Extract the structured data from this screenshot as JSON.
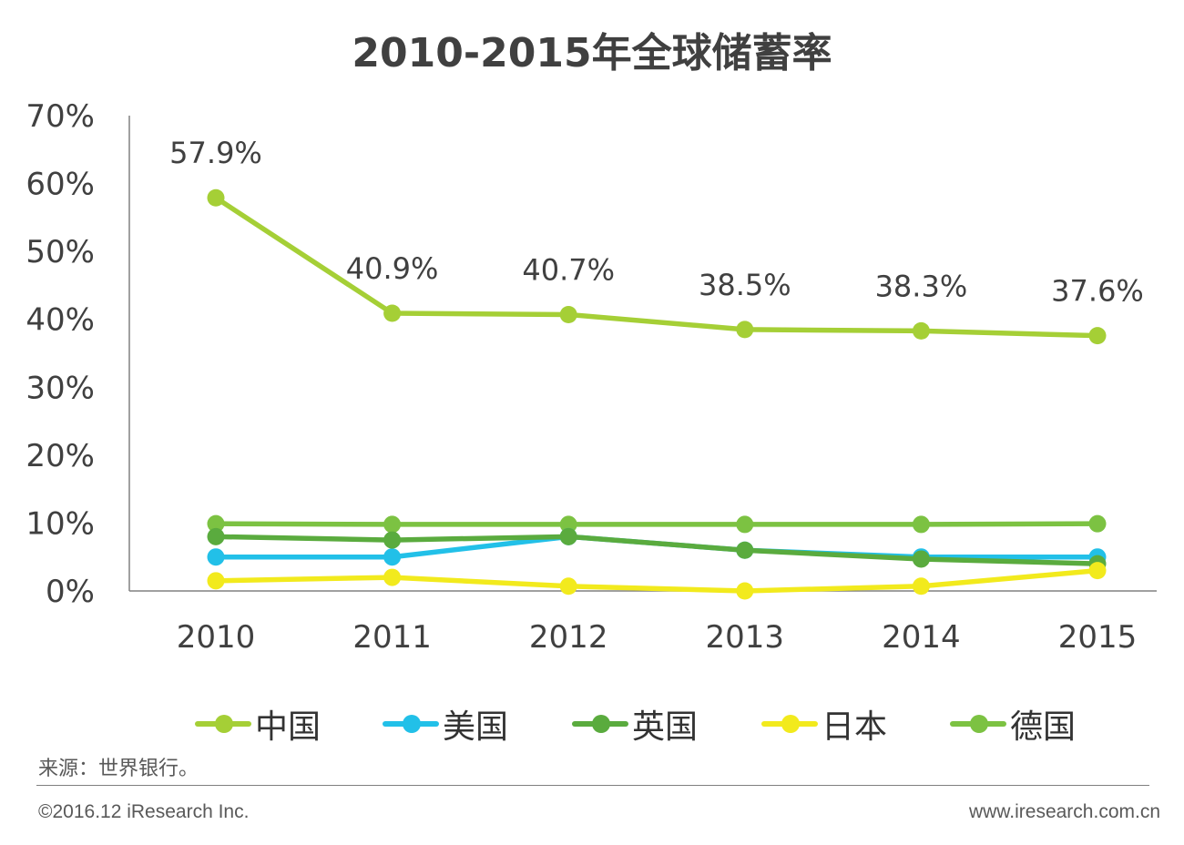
{
  "chart_data": {
    "type": "line",
    "title": "2010-2015年全球储蓄率",
    "categories": [
      "2010",
      "2011",
      "2012",
      "2013",
      "2014",
      "2015"
    ],
    "y_ticks": [
      "0%",
      "10%",
      "20%",
      "30%",
      "40%",
      "50%",
      "60%",
      "70%"
    ],
    "ylim": [
      0,
      70
    ],
    "xlabel": "",
    "ylabel": "",
    "grid": false,
    "legend_position": "bottom",
    "series": [
      {
        "name": "中国",
        "color": "#a5cf36",
        "values": [
          57.9,
          40.9,
          40.7,
          38.5,
          38.3,
          37.6
        ],
        "data_labels": [
          "57.9%",
          "40.9%",
          "40.7%",
          "38.5%",
          "38.3%",
          "37.6%"
        ]
      },
      {
        "name": "美国",
        "color": "#22c0e8",
        "values": [
          5.0,
          5.0,
          8.0,
          6.0,
          5.0,
          5.0
        ]
      },
      {
        "name": "英国",
        "color": "#5aab3e",
        "values": [
          8.0,
          7.5,
          8.0,
          6.0,
          4.7,
          4.0
        ]
      },
      {
        "name": "日本",
        "color": "#f2ea1d",
        "values": [
          1.5,
          2.0,
          0.7,
          0.0,
          0.7,
          3.0
        ]
      },
      {
        "name": "德国",
        "color": "#7cc242",
        "values": [
          9.9,
          9.8,
          9.8,
          9.8,
          9.8,
          9.9
        ]
      }
    ]
  },
  "footer": {
    "source": "来源：世界银行。",
    "copyright": "©2016.12 iResearch Inc.",
    "website": "www.iresearch.com.cn"
  }
}
